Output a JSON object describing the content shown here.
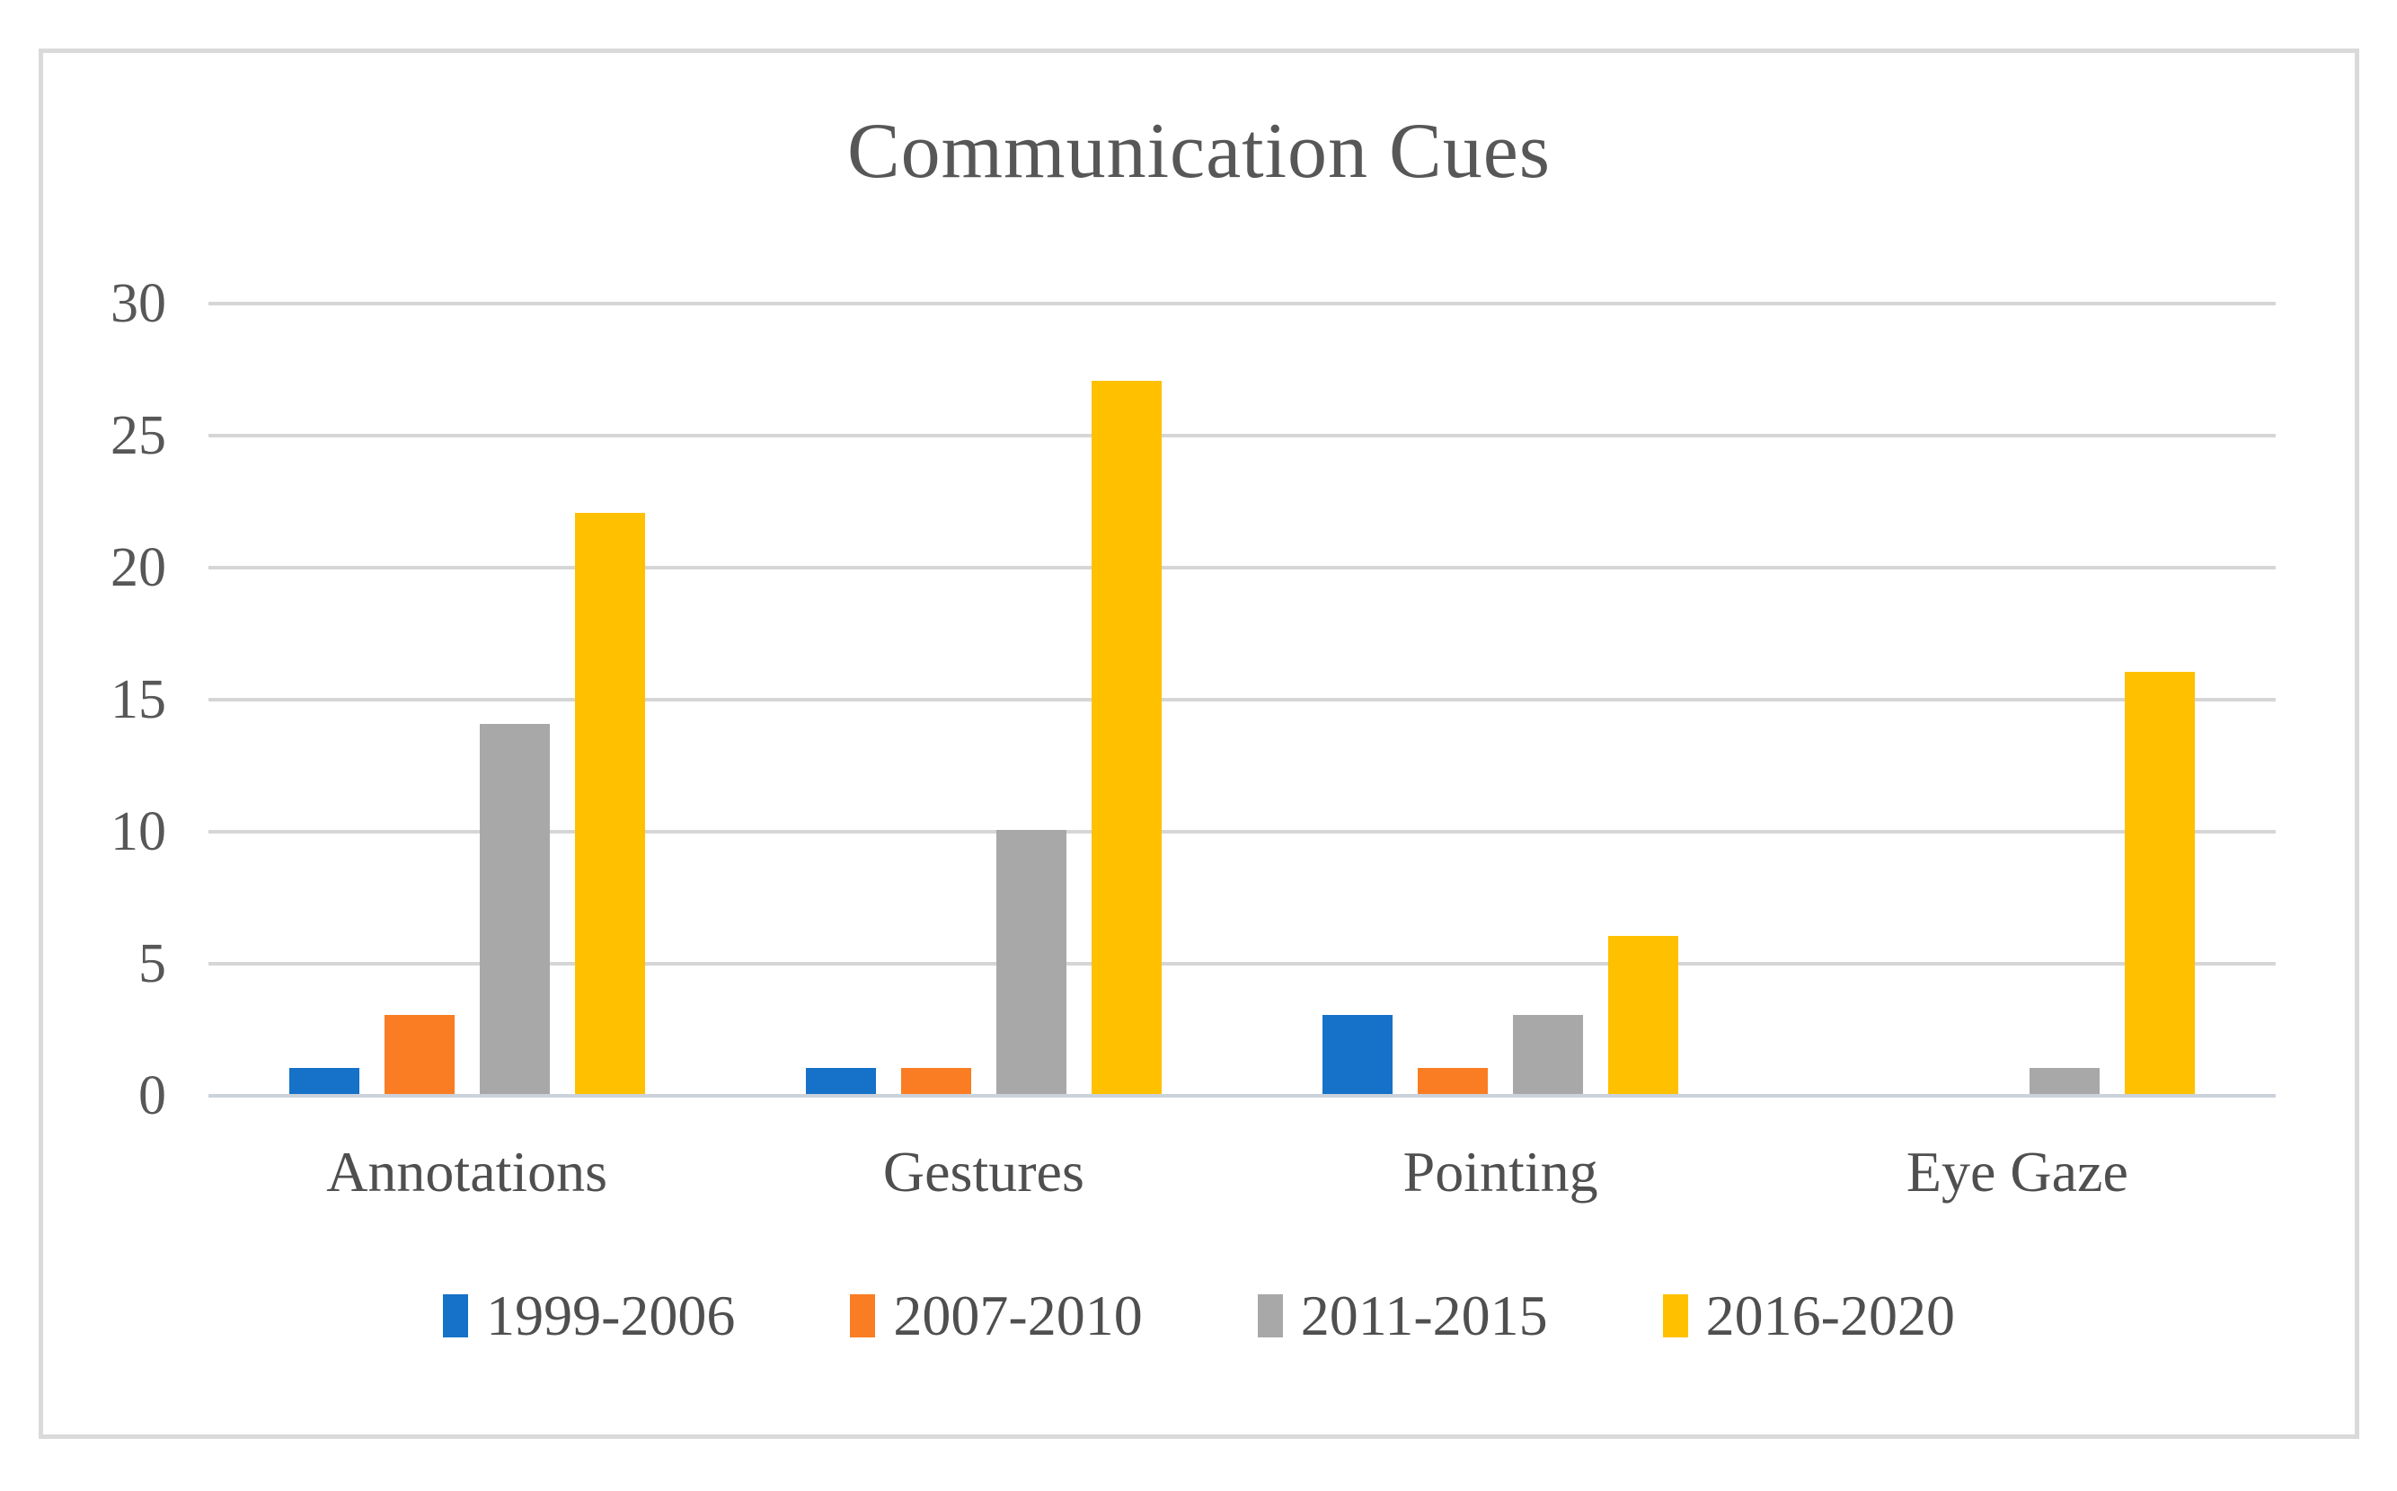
{
  "chart_data": {
    "type": "bar",
    "title": "Communication Cues",
    "categories": [
      "Annotations",
      "Gestures",
      "Pointing",
      "Eye Gaze"
    ],
    "series": [
      {
        "name": "1999-2006",
        "color": "#1572C8",
        "values": [
          1,
          1,
          3,
          0
        ]
      },
      {
        "name": "2007-2010",
        "color": "#FA7D23",
        "values": [
          3,
          1,
          1,
          0
        ]
      },
      {
        "name": "2011-2015",
        "color": "#A8A8A8",
        "values": [
          14,
          10,
          3,
          1
        ]
      },
      {
        "name": "2016-2020",
        "color": "#FFC000",
        "values": [
          22,
          27,
          6,
          16
        ]
      }
    ],
    "xlabel": "",
    "ylabel": "",
    "ylim": [
      0,
      30
    ],
    "yticks": [
      0,
      5,
      10,
      15,
      20,
      25,
      30
    ],
    "grid": true,
    "legend_position": "bottom"
  },
  "style": {
    "text_color": "#575757",
    "gridline_color": "#d6d6d6",
    "axis_line_color": "#ccd2dc",
    "frame_border_color": "#dadada",
    "background_color": "#ffffff"
  }
}
